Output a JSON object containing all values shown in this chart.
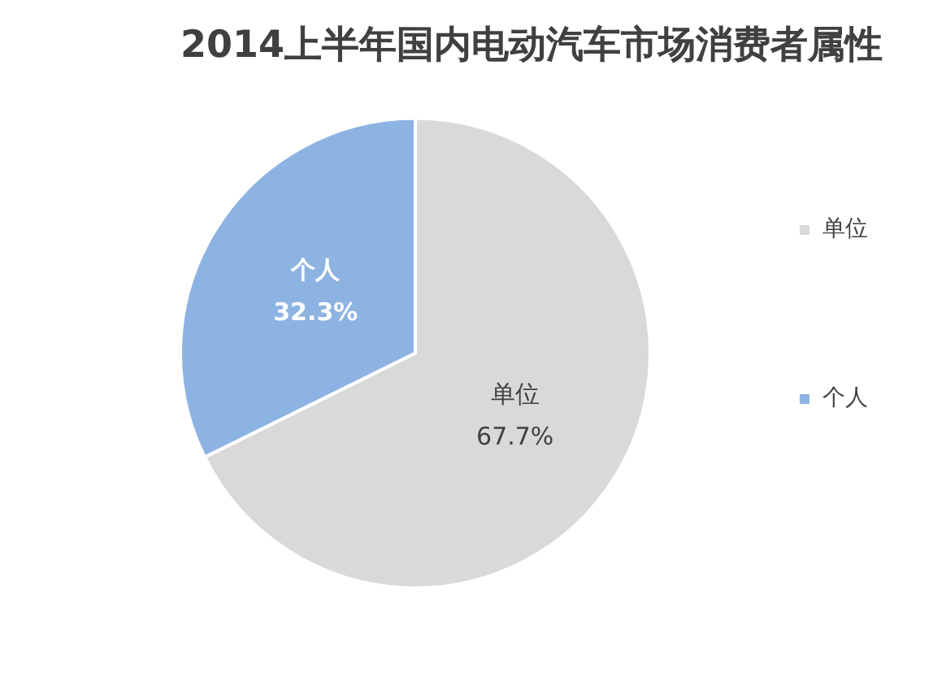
{
  "chart_data": {
    "type": "pie",
    "title": "2014上半年国内电动汽车市场消费者属性",
    "categories": [
      "单位",
      "个人"
    ],
    "values": [
      67.7,
      32.3
    ],
    "colors": [
      "#d9d9d9",
      "#8db3e2"
    ],
    "value_labels": [
      "67.7%",
      "32.3%"
    ],
    "legend": "right"
  }
}
